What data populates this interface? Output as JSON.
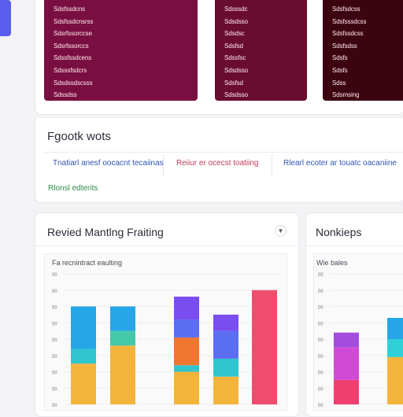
{
  "panels": [
    {
      "color": "#790f40",
      "items": [
        "Sdsfssdcns",
        "Sdsfssdcnsrss",
        "Sdsrfssorccse",
        "Sdsrfssorccs",
        "Sdssfssdcens",
        "Sdsssfsdcrs",
        "Sdsdssdscsss",
        "Sdssdss"
      ]
    },
    {
      "color": "#6a0c30",
      "items": [
        "Sdsssdc",
        "Sdsdsso",
        "Sdsdsc",
        "Sdsfsd",
        "Sdssfsc",
        "Sdsdsso",
        "Sdsfsd",
        "Sdsdsso"
      ]
    },
    {
      "color": "#3c0410",
      "items": [
        "Sdsfsdcss",
        "Sdsfsssdcss",
        "Sdsfssdcss",
        "Sdsfsdss",
        "Sdsfs",
        "Sdsfs",
        "Sdss",
        "Sdsmsing"
      ]
    }
  ],
  "feedback": {
    "title": "Fgootk wots",
    "links": [
      {
        "text": "Tnatiarl anesf oocacnt tecaiinas",
        "color": "#2f56b3"
      },
      {
        "text": "Reiiur er ocecst toatiing",
        "color": "#c23b5c"
      },
      {
        "text": "Rlearl ecoter ar touatc oacaniine",
        "color": "#2f56b3"
      }
    ],
    "note": "Rlonsl edterits",
    "note_color": "#2c8a47"
  },
  "chart_cards": [
    {
      "title": "Revied Mantlng Fraiting",
      "plot_label": "Fa recnintract eaulting",
      "chart_data": {
        "type": "bar",
        "stacked": true,
        "categories": [
          "",
          "",
          "",
          "",
          ""
        ],
        "series": [
          {
            "color": "#f4b43c",
            "values": [
              50,
              72,
              40,
              34,
              0
            ]
          },
          {
            "color": "#31c5d0",
            "values": [
              18,
              0,
              8,
              22,
              0
            ]
          },
          {
            "color": "#43c9a8",
            "values": [
              0,
              18,
              0,
              0,
              0
            ]
          },
          {
            "color": "#26a6e6",
            "values": [
              52,
              30,
              0,
              0,
              0
            ]
          },
          {
            "color": "#f0772f",
            "values": [
              0,
              0,
              34,
              0,
              0
            ]
          },
          {
            "color": "#5b6ef2",
            "values": [
              0,
              0,
              22,
              34,
              0
            ]
          },
          {
            "color": "#7a4df0",
            "values": [
              0,
              0,
              28,
              20,
              0
            ]
          },
          {
            "color": "#ee4d6d",
            "values": [
              0,
              0,
              0,
              0,
              140
            ]
          }
        ],
        "yticks": [
          "00",
          "00",
          "00",
          "00",
          "00",
          "00",
          "00",
          "00",
          "00"
        ],
        "ylim": [
          0,
          160
        ],
        "grid": true
      }
    },
    {
      "title": "Nonkieps",
      "plot_label": "Wie bales",
      "chart_data": {
        "type": "bar",
        "stacked": true,
        "categories": [
          "",
          ""
        ],
        "series": [
          {
            "color": "#ef3f6f",
            "values": [
              30,
              0
            ]
          },
          {
            "color": "#d04ad6",
            "values": [
              40,
              0
            ]
          },
          {
            "color": "#a34de0",
            "values": [
              18,
              0
            ]
          },
          {
            "color": "#f4b43c",
            "values": [
              0,
              58
            ]
          },
          {
            "color": "#2fd0d6",
            "values": [
              0,
              22
            ]
          },
          {
            "color": "#26a6e6",
            "values": [
              0,
              26
            ]
          }
        ],
        "yticks": [
          "00",
          "00",
          "00",
          "00",
          "00",
          "00",
          "00",
          "00",
          "00"
        ],
        "ylim": [
          0,
          160
        ],
        "grid": true
      }
    }
  ]
}
